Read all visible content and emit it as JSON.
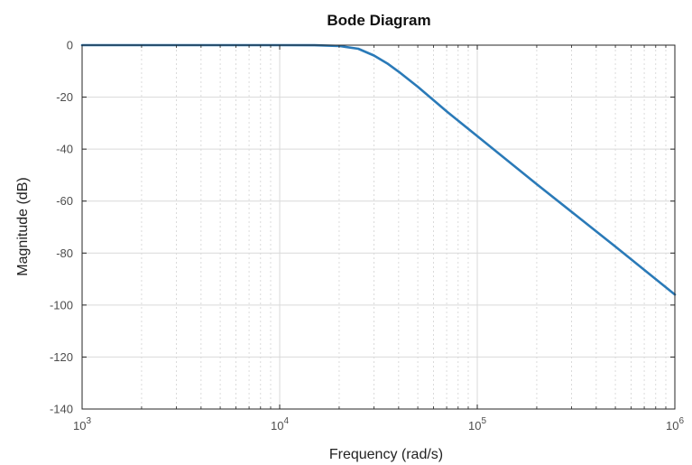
{
  "chart_data": {
    "type": "line",
    "title": "Bode Diagram",
    "xlabel": "Frequency  (rad/s)",
    "ylabel": "Magnitude (dB)",
    "xscale": "log",
    "xlim": [
      1000,
      1000000
    ],
    "ylim": [
      -140,
      0
    ],
    "grid": true,
    "x_ticks": [
      {
        "base": "10",
        "exp": "3"
      },
      {
        "base": "10",
        "exp": "4"
      },
      {
        "base": "10",
        "exp": "5"
      },
      {
        "base": "10",
        "exp": "6"
      }
    ],
    "y_ticks": [
      "0",
      "-20",
      "-40",
      "-60",
      "-80",
      "-100",
      "-120",
      "-140"
    ],
    "y_tick_values": [
      0,
      -20,
      -40,
      -60,
      -80,
      -100,
      -120,
      -140
    ],
    "series": [
      {
        "color": "#2a7ab8",
        "x": [
          1000,
          2000,
          5000,
          10000,
          15000,
          20000,
          25000,
          30000,
          35000,
          40000,
          50000,
          70000,
          100000,
          200000,
          500000,
          1000000
        ],
        "y": [
          0,
          0,
          0,
          0,
          -0.05,
          -0.3,
          -1.4,
          -4.0,
          -7.0,
          -10.2,
          -16.0,
          -25.5,
          -35.0,
          -53.5,
          -77.5,
          -96.0
        ]
      }
    ]
  }
}
